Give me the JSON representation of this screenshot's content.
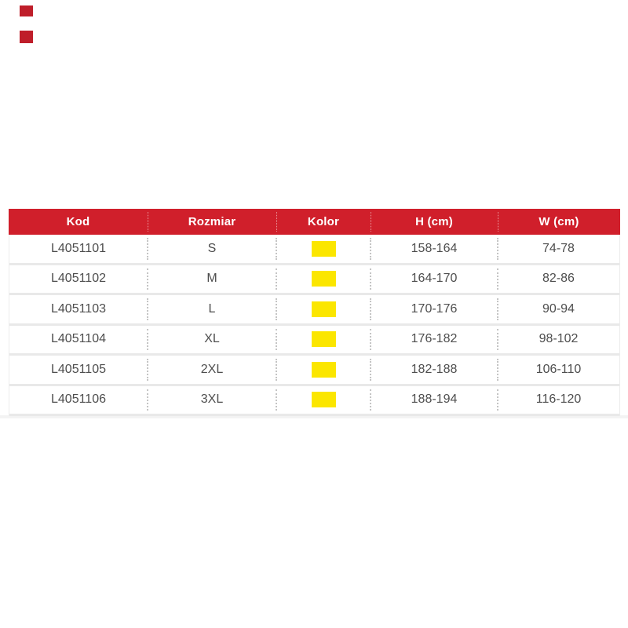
{
  "canvas": {
    "background": "#ffffff"
  },
  "decor": {
    "corner_marks": [
      {
        "name": "corner-mark-top",
        "color": "#bf1e2a"
      },
      {
        "name": "corner-mark-bottom",
        "color": "#bf1e2a"
      }
    ],
    "bottom_rule_color": "#f3f3f3"
  },
  "size_table": {
    "header": {
      "background": "#d01f2b",
      "text_color": "#ffffff",
      "columns": [
        {
          "key": "kod",
          "label": "Kod"
        },
        {
          "key": "rozmiar",
          "label": "Rozmiar"
        },
        {
          "key": "kolor",
          "label": "Kolor"
        },
        {
          "key": "h",
          "label": "H (cm)"
        },
        {
          "key": "w",
          "label": "W (cm)"
        }
      ]
    },
    "rows": [
      {
        "kod": "L4051101",
        "rozmiar": "S",
        "kolor_swatch": "#fbe600",
        "h": "158-164",
        "w": "74-78"
      },
      {
        "kod": "L4051102",
        "rozmiar": "M",
        "kolor_swatch": "#fbe600",
        "h": "164-170",
        "w": "82-86"
      },
      {
        "kod": "L4051103",
        "rozmiar": "L",
        "kolor_swatch": "#fbe600",
        "h": "170-176",
        "w": "90-94"
      },
      {
        "kod": "L4051104",
        "rozmiar": "XL",
        "kolor_swatch": "#fbe600",
        "h": "176-182",
        "w": "98-102"
      },
      {
        "kod": "L4051105",
        "rozmiar": "2XL",
        "kolor_swatch": "#fbe600",
        "h": "182-188",
        "w": "106-110"
      },
      {
        "kod": "L4051106",
        "rozmiar": "3XL",
        "kolor_swatch": "#fbe600",
        "h": "188-194",
        "w": "116-120"
      }
    ],
    "styles": {
      "row_text_color": "#4d4d4d",
      "row_border_color": "#e9e9e9",
      "cell_divider_color": "#c4c4c4"
    }
  }
}
